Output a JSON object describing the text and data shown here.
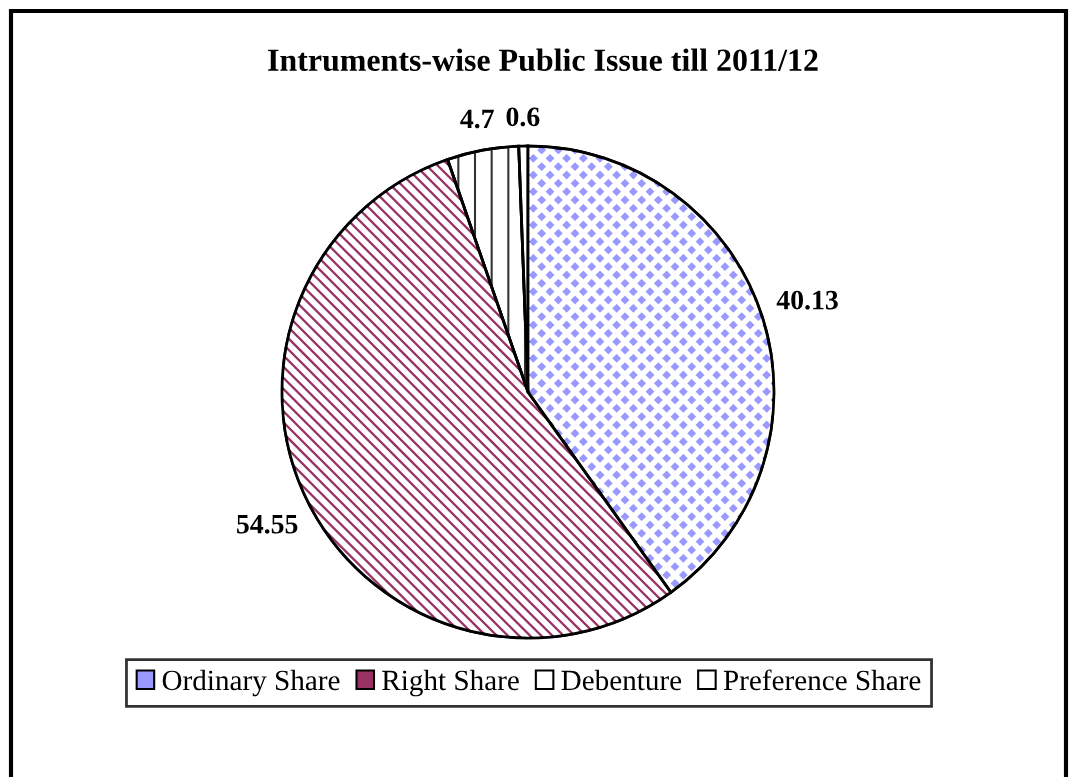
{
  "chart_data": {
    "type": "pie",
    "title": "Intruments-wise Public Issue till 2011/12",
    "categories": [
      "Ordinary Share",
      "Right Share",
      "Debenture",
      "Preference Share"
    ],
    "values": [
      40.13,
      54.55,
      4.7,
      0.6
    ],
    "colors": [
      "#9999ff",
      "#993366",
      "#ffffff",
      "#ffffff"
    ],
    "data_labels": true,
    "legend": "bottom"
  }
}
